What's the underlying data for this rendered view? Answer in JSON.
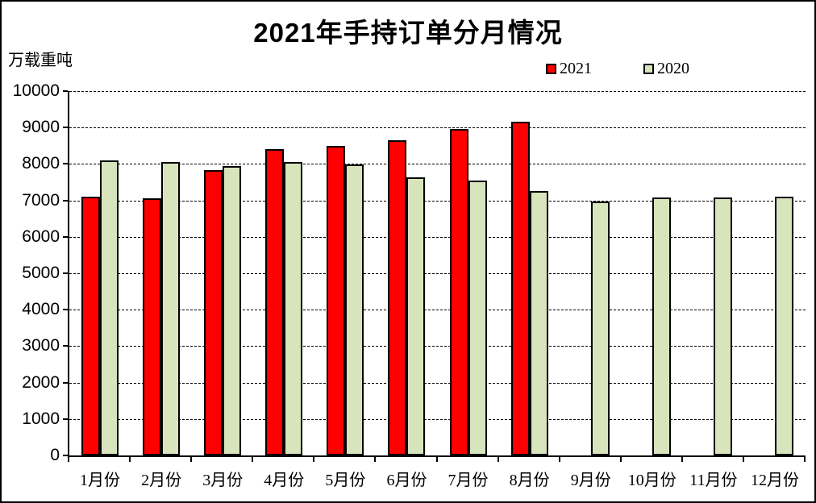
{
  "chart_data": {
    "type": "bar",
    "title": "2021年手持订单分月情况",
    "ylabel_unit": "万载重吨",
    "categories": [
      "1月份",
      "2月份",
      "3月份",
      "4月份",
      "5月份",
      "6月份",
      "7月份",
      "8月份",
      "9月份",
      "10月份",
      "11月份",
      "12月份"
    ],
    "series": [
      {
        "name": "2021",
        "color": "#FF0000",
        "values": [
          7100,
          7050,
          7840,
          8400,
          8500,
          8650,
          8950,
          9150,
          null,
          null,
          null,
          null
        ]
      },
      {
        "name": "2020",
        "color": "#D8E4BC",
        "values": [
          8100,
          8050,
          7950,
          8050,
          7980,
          7630,
          7540,
          7250,
          6980,
          7090,
          7090,
          7110
        ]
      }
    ],
    "ylim": [
      0,
      10000
    ],
    "ytick_step": 1000,
    "grid": "horizontal-dashed",
    "legend_position": "top-right"
  }
}
